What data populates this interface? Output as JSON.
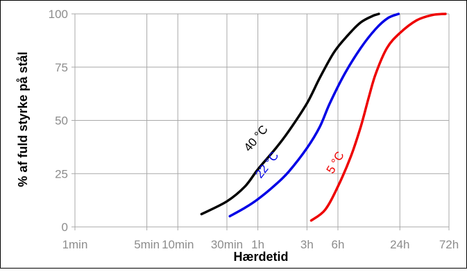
{
  "chart_data": {
    "type": "line",
    "xlabel": "Hærdetid",
    "ylabel": "% af fuld styrke på stål",
    "x_scale": "log",
    "x_unit": "minutes",
    "xlim": [
      1,
      4320
    ],
    "ylim": [
      0,
      100
    ],
    "grid": true,
    "legend": "none (labels placed on the curves)",
    "x_ticks": [
      {
        "value": 1,
        "label": "1min"
      },
      {
        "value": 5,
        "label": "5min"
      },
      {
        "value": 10,
        "label": "10min"
      },
      {
        "value": 30,
        "label": "30min"
      },
      {
        "value": 60,
        "label": "1h"
      },
      {
        "value": 180,
        "label": "3h"
      },
      {
        "value": 360,
        "label": "6h"
      },
      {
        "value": 1440,
        "label": "24h"
      },
      {
        "value": 4320,
        "label": "72h"
      }
    ],
    "y_ticks": [
      {
        "value": 0,
        "label": "0"
      },
      {
        "value": 25,
        "label": "25"
      },
      {
        "value": 50,
        "label": "50"
      },
      {
        "value": 75,
        "label": "75"
      },
      {
        "value": 100,
        "label": "100"
      }
    ],
    "series": [
      {
        "name": "40 °C",
        "color": "#000000",
        "points": [
          {
            "x": 17,
            "y": 6
          },
          {
            "x": 30,
            "y": 12
          },
          {
            "x": 45,
            "y": 19
          },
          {
            "x": 60,
            "y": 27
          },
          {
            "x": 90,
            "y": 37
          },
          {
            "x": 120,
            "y": 45
          },
          {
            "x": 180,
            "y": 58
          },
          {
            "x": 240,
            "y": 70
          },
          {
            "x": 330,
            "y": 82
          },
          {
            "x": 450,
            "y": 90
          },
          {
            "x": 600,
            "y": 96
          },
          {
            "x": 780,
            "y": 99
          },
          {
            "x": 900,
            "y": 100
          }
        ]
      },
      {
        "name": "22 °C",
        "color": "#0000e6",
        "points": [
          {
            "x": 32,
            "y": 5
          },
          {
            "x": 45,
            "y": 9
          },
          {
            "x": 60,
            "y": 13
          },
          {
            "x": 90,
            "y": 20
          },
          {
            "x": 120,
            "y": 26
          },
          {
            "x": 180,
            "y": 37
          },
          {
            "x": 240,
            "y": 47
          },
          {
            "x": 300,
            "y": 58
          },
          {
            "x": 420,
            "y": 72
          },
          {
            "x": 600,
            "y": 84
          },
          {
            "x": 840,
            "y": 93
          },
          {
            "x": 1100,
            "y": 98
          },
          {
            "x": 1400,
            "y": 100
          }
        ]
      },
      {
        "name": "5 °C",
        "color": "#ee0000",
        "points": [
          {
            "x": 198,
            "y": 3
          },
          {
            "x": 270,
            "y": 8
          },
          {
            "x": 360,
            "y": 19
          },
          {
            "x": 480,
            "y": 33
          },
          {
            "x": 600,
            "y": 47
          },
          {
            "x": 720,
            "y": 61
          },
          {
            "x": 840,
            "y": 72
          },
          {
            "x": 1080,
            "y": 84
          },
          {
            "x": 1440,
            "y": 91
          },
          {
            "x": 2100,
            "y": 97
          },
          {
            "x": 3000,
            "y": 99.5
          },
          {
            "x": 4000,
            "y": 100
          }
        ]
      }
    ]
  }
}
